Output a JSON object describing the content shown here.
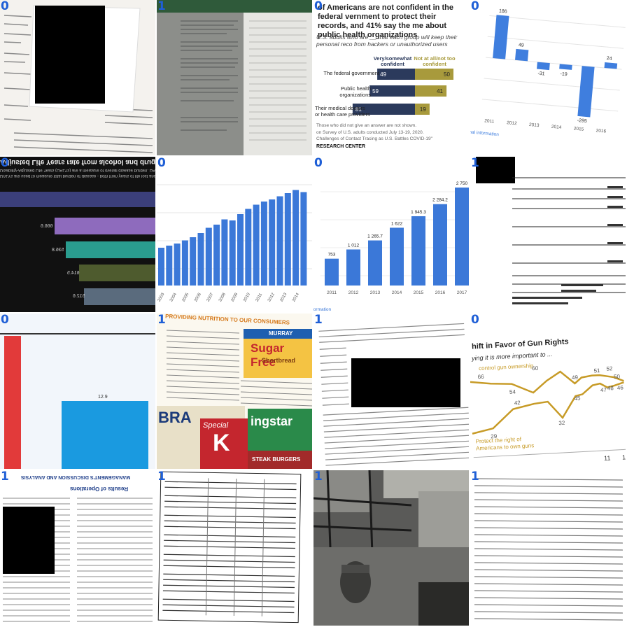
{
  "tiles": [
    {
      "index": "0"
    },
    {
      "index": "1"
    },
    {
      "index": "0",
      "pew": {
        "title": "of Americans are not confident in the federal vernment to protect their records, and 41% say the me about public health organizations",
        "subtitle": "U.S. adults who are __ that each group will keep their personal reco from hackers or unauthorized users",
        "col1": "Very/somewhat confident",
        "col2": "Not at all/not too confident",
        "rows": [
          {
            "label": "The federal government",
            "a": 49,
            "b": 50
          },
          {
            "label": "Public health organizations",
            "a": 59,
            "b": 41
          },
          {
            "label": "Their medical doctors or health care providers",
            "a": 81,
            "b": 19
          }
        ],
        "note1": "Those who did not give an answer are not shown.",
        "note2": "on Survey of U.S. adults conducted July 13-19, 2020.",
        "note3": "Challenges of Contact Tracing as U.S. Battles COVID-19\"",
        "source": "RESEARCH CENTER",
        "colors": {
          "navy": "#2b3a5c",
          "olive": "#a89a3c"
        }
      }
    },
    {
      "index": "0",
      "bars": {
        "labels": [
          "186",
          "49",
          "-31",
          "-19",
          "-295",
          "24"
        ],
        "years": [
          "2011",
          "2012",
          "2013",
          "2014",
          "2015",
          "2016",
          "2018"
        ],
        "link": "onal information",
        "color": "#3f7ede"
      }
    },
    {
      "index": "0",
      "mirrored_title": "Adjusted Life Years rate from alcohol and drug use",
      "mirrored_sub1": "Disability-Adjusted Life Years (DALYs) are a measure of overall disease burden. DALYs from alcohol and drug use disorders per 100,000 individuals.",
      "mirrored_sub2": "DALYs are used to measure total burden of disease - both from years of life lost and years lived with a disability.",
      "values": [
        "666.6",
        "536.8",
        "614.5",
        "512.6"
      ],
      "colors": [
        "#3b3f7a",
        "#8e6bbd",
        "#2a9d8f",
        "#4e5b2e",
        "#5a6b7d"
      ]
    },
    {
      "index": "0",
      "years": [
        "2003",
        "2004",
        "2005",
        "2006",
        "2007",
        "2008",
        "2009",
        "2010",
        "2011",
        "2012",
        "2013",
        "2014"
      ],
      "color": "#3b78d8"
    },
    {
      "index": "0",
      "chart_data": {
        "type": "bar",
        "categories": [
          "2011",
          "2012",
          "2013",
          "2014",
          "2015",
          "2016",
          "2017"
        ],
        "values": [
          753,
          1012,
          1265.7,
          1622,
          1945.3,
          2284.2,
          2750
        ],
        "value_labels": [
          "753",
          "1 012",
          "1 265.7",
          "1 622",
          "1 945.3",
          "2 284.2",
          "2 750"
        ]
      },
      "link": "formation",
      "color": "#3b78d8"
    },
    {
      "index": "1"
    },
    {
      "index": "0",
      "value_label": "12.9",
      "colors": {
        "red": "#e23a3a",
        "blue": "#1a9ae0"
      }
    },
    {
      "index": "1",
      "heading": "PROVIDING NUTRITION TO OUR CONSUMERS",
      "box1": "MURRAY",
      "box2": "Sugar Free",
      "box3": "Shortbread",
      "box4": "BRA",
      "box5": "Special",
      "box6": "K",
      "box7": "ingstar",
      "box8": "STEAK BURGERS"
    },
    {
      "index": "1"
    },
    {
      "index": "0",
      "title": "hift in Favor of Gun Rights",
      "subtitle": "ying it is more important to ...",
      "series1": "control gun ownership",
      "series2": "Protect the right of Americans to own guns",
      "labels": [
        "66",
        "60",
        "54",
        "42",
        "49",
        "51",
        "52",
        "50",
        "48",
        "45",
        "47",
        "46",
        "29",
        "32"
      ],
      "xticks": [
        "11",
        "14"
      ],
      "color": "#c79b27"
    },
    {
      "index": "1",
      "mirrored_header": "MANAGEMENT'S DISCUSSION AND ANALYSIS",
      "mirrored_sub": "Results of Operations"
    },
    {
      "index": "1"
    },
    {
      "index": "1"
    },
    {
      "index": "1"
    }
  ]
}
